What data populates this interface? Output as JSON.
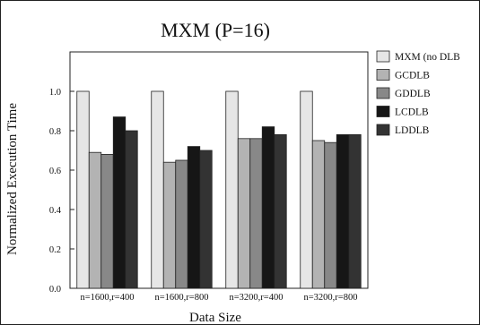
{
  "chart_data": {
    "type": "bar",
    "title": "MXM (P=16)",
    "xlabel": "Data Size",
    "ylabel": "Normalized Execution Time",
    "categories": [
      "n=1600,r=400",
      "n=1600,r=800",
      "n=3200,r=400",
      "n=3200,r=800"
    ],
    "ylim": [
      0,
      1.2
    ],
    "yticks": [
      "0.0",
      "0.2",
      "0.4",
      "0.6",
      "0.8",
      "1.0"
    ],
    "grid": false,
    "legend_position": "top-right",
    "series": [
      {
        "name": "MXM (no DLB",
        "values": [
          1.0,
          1.0,
          1.0,
          1.0
        ],
        "color": "#e6e6e6"
      },
      {
        "name": "GCDLB",
        "values": [
          0.69,
          0.64,
          0.76,
          0.75
        ],
        "color": "#b3b3b3"
      },
      {
        "name": "GDDLB",
        "values": [
          0.68,
          0.65,
          0.76,
          0.74
        ],
        "color": "#888888"
      },
      {
        "name": "LCDLB",
        "values": [
          0.87,
          0.72,
          0.82,
          0.78
        ],
        "color": "#161616"
      },
      {
        "name": "LDDLB",
        "values": [
          0.8,
          0.7,
          0.78,
          0.78
        ],
        "color": "#333333"
      }
    ]
  }
}
